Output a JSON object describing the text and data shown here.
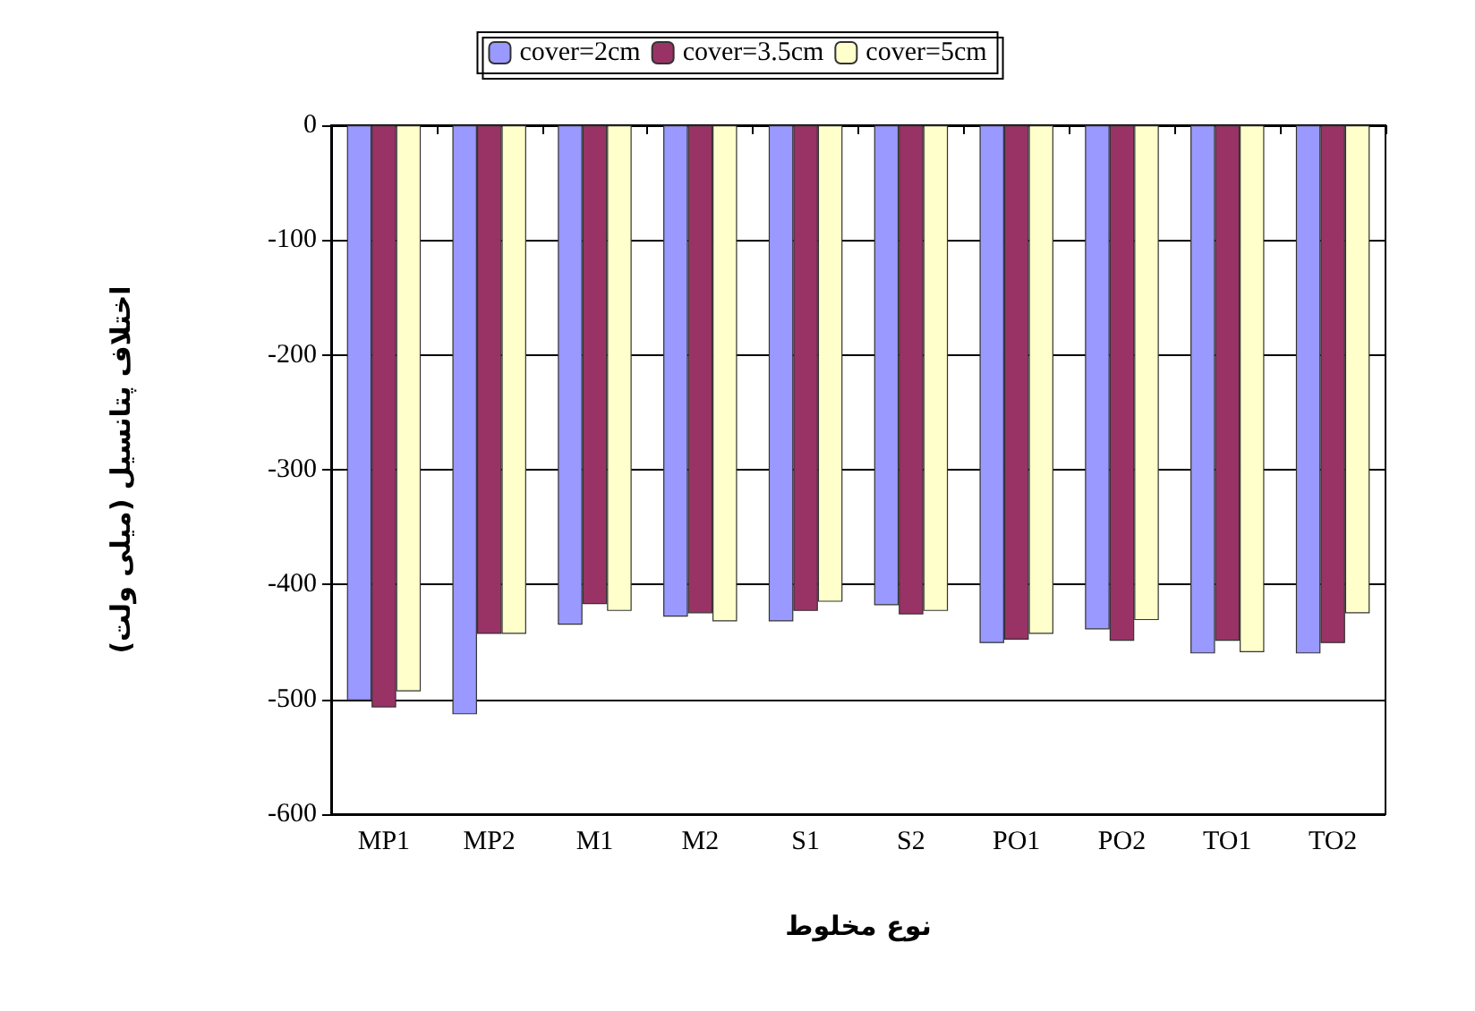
{
  "chart_data": {
    "type": "bar",
    "xlabel": "نوع مخلوط",
    "ylabel": "اختلاف پتانسیل (میلی ولت)",
    "categories": [
      "MP1",
      "MP2",
      "M1",
      "M2",
      "S1",
      "S2",
      "PO1",
      "PO2",
      "TO1",
      "TO2"
    ],
    "series": [
      {
        "name": "cover=2cm",
        "color": "#9999ff",
        "values": [
          -501,
          -513,
          -435,
          -428,
          -432,
          -418,
          -451,
          -439,
          -460,
          -460
        ]
      },
      {
        "name": "cover=3.5cm",
        "color": "#993366",
        "values": [
          -507,
          -443,
          -417,
          -425,
          -423,
          -426,
          -448,
          -449,
          -449,
          -451
        ]
      },
      {
        "name": "cover=5cm",
        "color": "#ffffcc",
        "values": [
          -493,
          -443,
          -423,
          -432,
          -415,
          -423,
          -443,
          -431,
          -459,
          -425
        ]
      }
    ],
    "ylim": [
      -600,
      0
    ],
    "yticks": [
      -600,
      -500,
      -400,
      -300,
      -200,
      -100,
      0
    ],
    "grid": "y",
    "legend": "top"
  }
}
